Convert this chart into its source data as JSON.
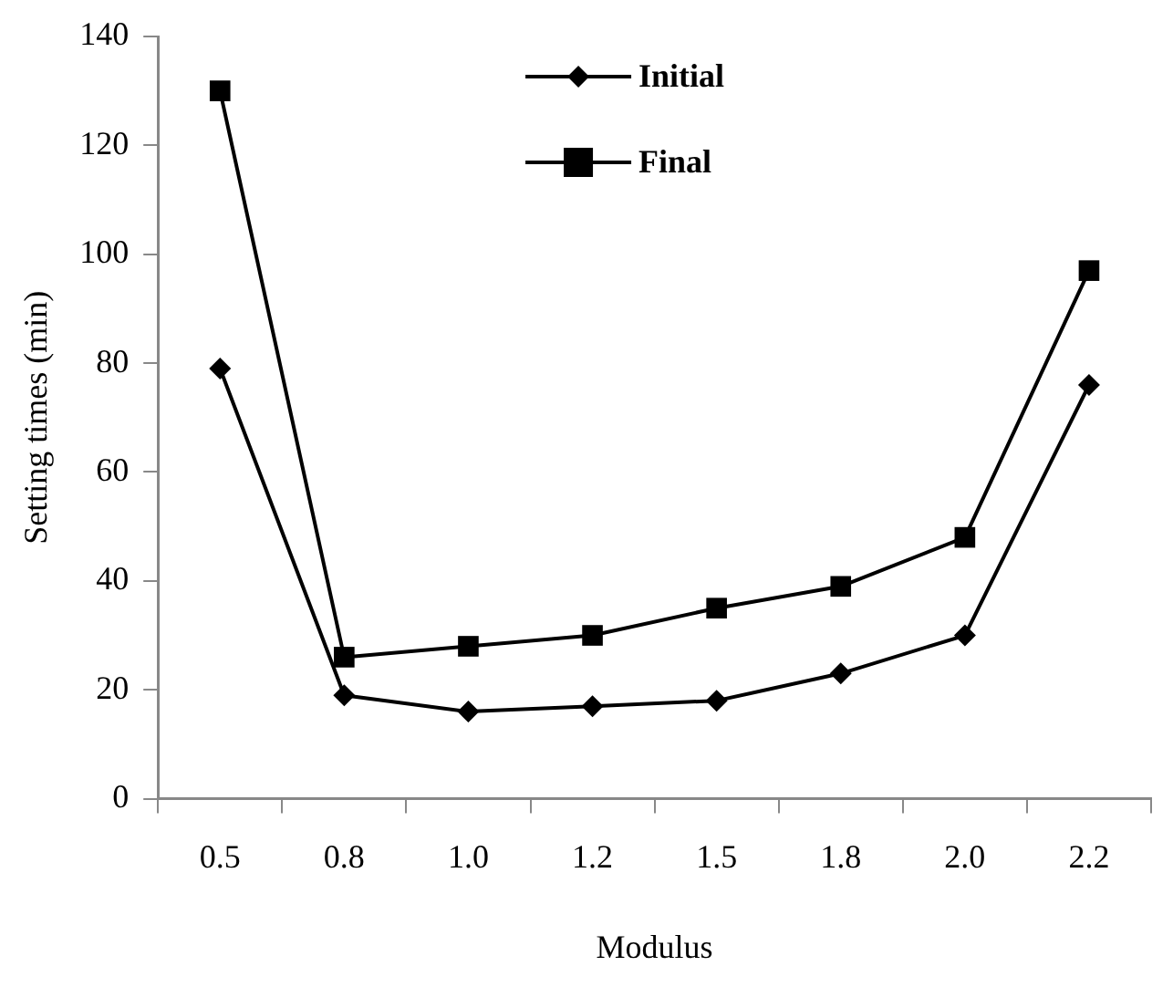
{
  "chart_data": {
    "type": "line",
    "xlabel": "Modulus",
    "ylabel": "Setting times (min)",
    "categories": [
      "0.5",
      "0.8",
      "1.0",
      "1.2",
      "1.5",
      "1.8",
      "2.0",
      "2.2"
    ],
    "series": [
      {
        "name": "Initial",
        "color": "#000000",
        "marker": "diamond",
        "values": [
          79,
          19,
          16,
          17,
          18,
          23,
          30,
          76
        ]
      },
      {
        "name": "Final",
        "color": "#000000",
        "marker": "square",
        "values": [
          130,
          26,
          28,
          30,
          35,
          39,
          48,
          97
        ]
      }
    ],
    "ylim": [
      0,
      140
    ],
    "yticks": [
      0,
      20,
      40,
      60,
      80,
      100,
      120,
      140
    ],
    "grid": false,
    "legend": "top",
    "line_style": "solid"
  }
}
